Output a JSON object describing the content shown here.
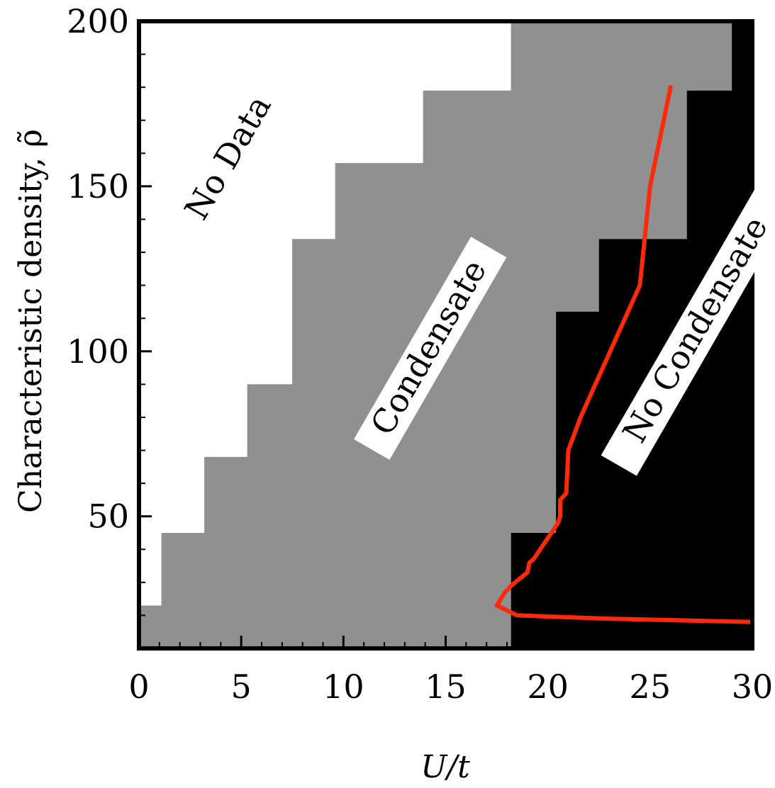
{
  "chart_data": {
    "type": "heatmap",
    "xlabel": "U/t",
    "ylabel": "Characteristic density, ρ̃",
    "xlim": [
      0,
      30
    ],
    "ylim": [
      10,
      200
    ],
    "xticks": [
      "0",
      "5",
      "10",
      "15",
      "20",
      "25",
      "30"
    ],
    "yticks": [
      "50",
      "100",
      "150",
      "200"
    ],
    "colors": {
      "no_data": "#ffffff",
      "condensate": "#909090",
      "no_condensate": "#000000",
      "boundary_line": "#ff2a0a"
    },
    "regions": {
      "no_data_label": "No Data",
      "condensate_label": "Condensate",
      "no_condensate_label": "No Condensate"
    },
    "cells": [
      {
        "u_range": [
          0.0,
          1.1
        ],
        "data_above": 23,
        "condensate_below_u": 1.1,
        "noncondensate_from_u": 30.0
      },
      {
        "u_range": [
          1.1,
          3.2
        ],
        "data_above": 45,
        "condensate_below_u": 3.2
      },
      {
        "u_range": [
          3.2,
          5.3
        ],
        "data_above": 68
      },
      {
        "u_range": [
          5.3,
          7.5
        ],
        "data_above": 90
      },
      {
        "u_range": [
          7.5,
          9.6
        ],
        "data_above": 134
      },
      {
        "u_range": [
          9.6,
          13.9
        ],
        "data_above": 157
      },
      {
        "u_range": [
          13.9,
          18.2
        ],
        "data_above": 179
      },
      {
        "u_range": [
          18.2,
          29.0
        ],
        "data_above": 200
      },
      {
        "u_range": [
          29.0,
          30.0
        ],
        "data_above": 200
      }
    ],
    "no_data_steps": [
      [
        0.0,
        23
      ],
      [
        1.1,
        23
      ],
      [
        1.1,
        45
      ],
      [
        3.2,
        45
      ],
      [
        3.2,
        68
      ],
      [
        5.3,
        68
      ],
      [
        5.3,
        90
      ],
      [
        7.5,
        90
      ],
      [
        7.5,
        134
      ],
      [
        9.6,
        134
      ],
      [
        9.6,
        157
      ],
      [
        13.9,
        157
      ],
      [
        13.9,
        179
      ],
      [
        18.2,
        179
      ],
      [
        18.2,
        200
      ]
    ],
    "no_condensate_steps": [
      [
        18.2,
        10
      ],
      [
        18.2,
        45
      ],
      [
        20.4,
        45
      ],
      [
        20.4,
        112
      ],
      [
        22.5,
        112
      ],
      [
        22.5,
        134
      ],
      [
        26.8,
        134
      ],
      [
        26.8,
        179
      ],
      [
        29.0,
        179
      ],
      [
        29.0,
        200
      ],
      [
        30.0,
        200
      ]
    ],
    "series": [
      {
        "x": [
          30.0,
          23.0,
          18.5,
          17.5,
          17.6,
          17.9,
          18.2,
          19.0,
          19.1,
          19.3,
          20.5,
          20.6,
          20.6,
          20.9,
          21.0,
          21.6,
          24.5,
          25.0,
          26.0
        ],
        "y": [
          18,
          19,
          20,
          23,
          24,
          27,
          29,
          33,
          36,
          37,
          48,
          50,
          55,
          57,
          70,
          80,
          120,
          150,
          180
        ]
      }
    ]
  }
}
